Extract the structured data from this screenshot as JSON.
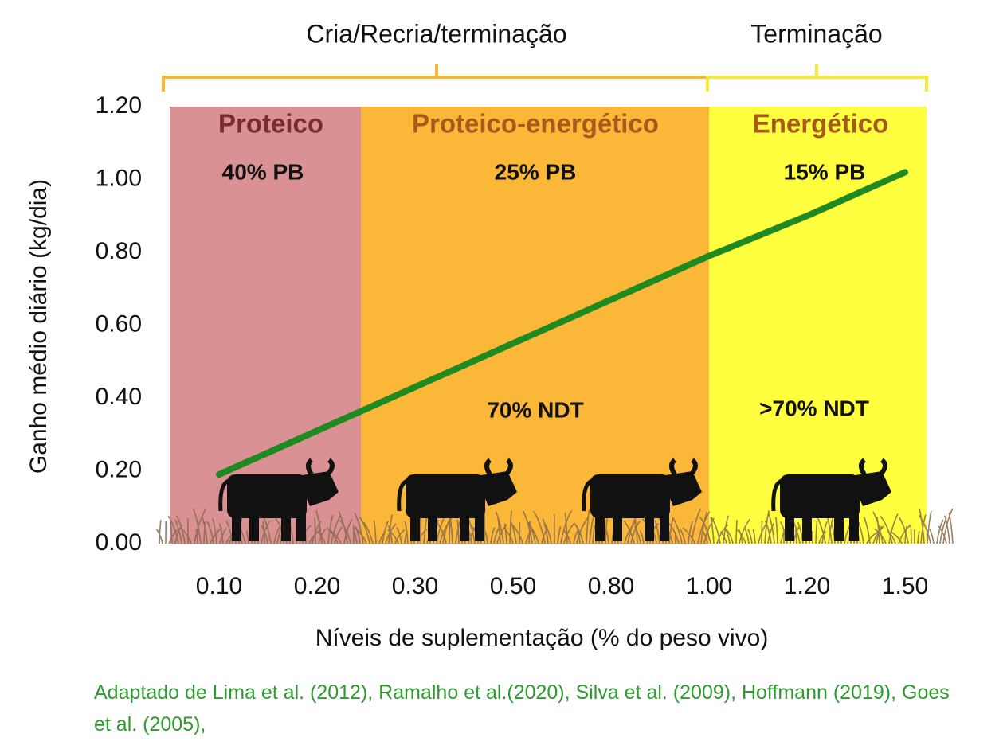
{
  "chart_data": {
    "type": "line",
    "y_label": "Ganho médio diário (kg/dia)",
    "x_label": "Níveis de suplementação (% do peso vivo)",
    "note": "Adaptado de Lima et al. (2012), Ramalho et al.(2020), Silva et al. (2009), Hoffmann (2019), Goes et al. (2005),",
    "categories": [
      "0.10",
      "0.20",
      "0.30",
      "0.50",
      "0.80",
      "1.00",
      "1.20",
      "1.50"
    ],
    "series": [
      {
        "color": "#1f8a21",
        "values": [
          0.19,
          0.31,
          0.43,
          0.55,
          0.67,
          0.79,
          0.9,
          1.02
        ]
      }
    ],
    "ylim": [
      0,
      1.2
    ],
    "yticks": [
      {
        "value": 0,
        "label": "0.00"
      },
      {
        "value": 0.2,
        "label": "0.20"
      },
      {
        "value": 0.4,
        "label": "0.40"
      },
      {
        "value": 0.6,
        "label": "0.60"
      },
      {
        "value": 0.8,
        "label": "0.80"
      },
      {
        "value": 1,
        "label": "1.00"
      },
      {
        "value": 1.2,
        "label": "1.20"
      }
    ],
    "grid": false,
    "regions": [
      {
        "name": "Proteico",
        "color": "#d99194",
        "text_color": "#7b2c2e",
        "texts": [
          "40% PB"
        ]
      },
      {
        "name": "Proteico-energético",
        "color": "#fbb738",
        "text_color": "#a85a1c",
        "texts": [
          "25% PB",
          "70% NDT"
        ]
      },
      {
        "name": "Energético",
        "color": "#ffff40",
        "text_color": "#a85a1c",
        "texts": [
          "15% PB",
          ">70% NDT"
        ]
      }
    ],
    "brackets": [
      {
        "label": "Cria/Recria/terminação",
        "color": "#f5b731"
      },
      {
        "label": "Terminação",
        "color": "#f7e83a"
      }
    ]
  }
}
